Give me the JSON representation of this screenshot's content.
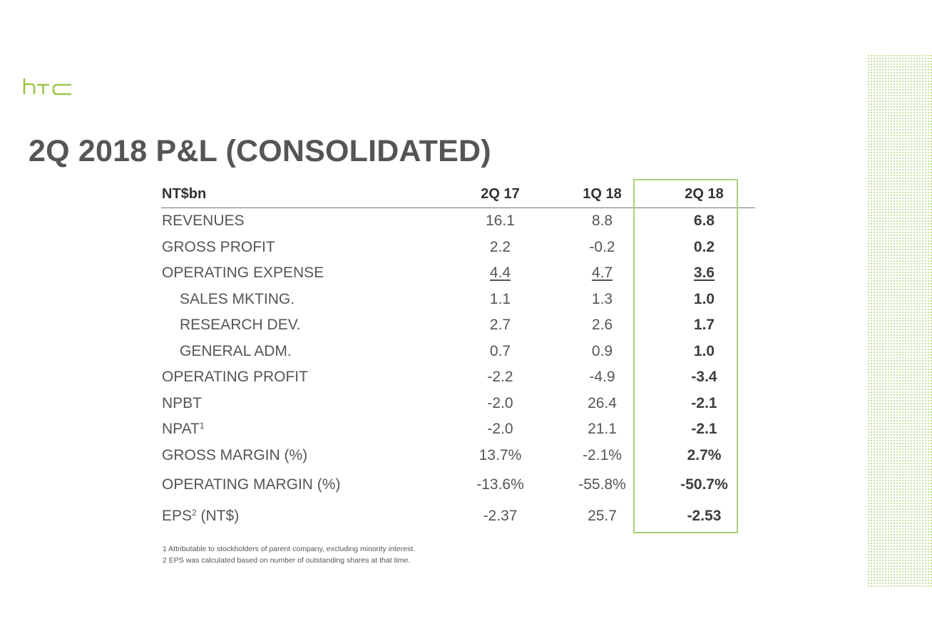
{
  "brand": {
    "logo_text": "htc",
    "accent_color": "#9dc64c"
  },
  "title": "2Q 2018 P&L (CONSOLIDATED)",
  "table": {
    "header": {
      "unit": "NT$bn",
      "col1": "2Q 17",
      "col2": "1Q 18",
      "col3": "2Q 18"
    },
    "rows": [
      {
        "label": "REVENUES",
        "sup": "",
        "suffix": "",
        "v1": "16.1",
        "v2": "8.8",
        "v3": "6.8"
      },
      {
        "label": "GROSS PROFIT",
        "sup": "",
        "suffix": "",
        "v1": "2.2",
        "v2": "-0.2",
        "v3": "0.2"
      },
      {
        "label": "OPERATING EXPENSE",
        "sup": "",
        "suffix": "",
        "v1": "4.4",
        "v2": "4.7",
        "v3": "3.6"
      },
      {
        "label": "SALES MKTING.",
        "sup": "",
        "suffix": "",
        "v1": "1.1",
        "v2": "1.3",
        "v3": "1.0"
      },
      {
        "label": "RESEARCH DEV.",
        "sup": "",
        "suffix": "",
        "v1": "2.7",
        "v2": "2.6",
        "v3": "1.7"
      },
      {
        "label": "GENERAL ADM.",
        "sup": "",
        "suffix": "",
        "v1": "0.7",
        "v2": "0.9",
        "v3": "1.0"
      },
      {
        "label": "OPERATING PROFIT",
        "sup": "",
        "suffix": "",
        "v1": "-2.2",
        "v2": "-4.9",
        "v3": "-3.4"
      },
      {
        "label": "NPBT",
        "sup": "",
        "suffix": "",
        "v1": "-2.0",
        "v2": "26.4",
        "v3": "-2.1"
      },
      {
        "label": "NPAT",
        "sup": "1",
        "suffix": "",
        "v1": "-2.0",
        "v2": "21.1",
        "v3": "-2.1"
      },
      {
        "label": "GROSS MARGIN (%)",
        "sup": "",
        "suffix": "",
        "v1": "13.7%",
        "v2": "-2.1%",
        "v3": "2.7%"
      },
      {
        "label": "OPERATING MARGIN (%)",
        "sup": "",
        "suffix": "",
        "v1": "-13.6%",
        "v2": "-55.8%",
        "v3": "-50.7%"
      },
      {
        "label": "EPS",
        "sup": "2",
        "suffix": " (NT$)",
        "v1": "-2.37",
        "v2": "25.7",
        "v3": "-2.53"
      }
    ]
  },
  "footnotes": [
    "1 Attributable to stockholders of parent company, excluding minority interest.",
    "2 EPS was calculated based on number of outstanding shares at that time."
  ]
}
